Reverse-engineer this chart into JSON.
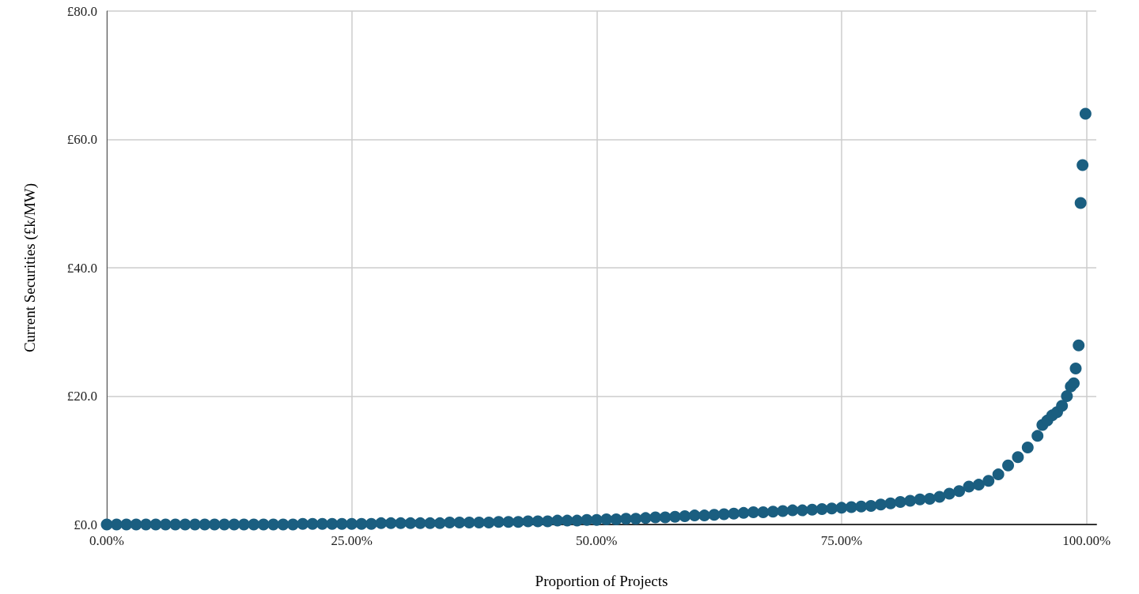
{
  "chart_data": {
    "type": "scatter",
    "xlabel": "Proportion of Projects",
    "ylabel": "Current Securities (£k/MW)",
    "x": [
      0,
      1,
      2,
      3,
      4,
      5,
      6,
      7,
      8,
      9,
      10,
      11,
      12,
      13,
      14,
      15,
      16,
      17,
      18,
      19,
      20,
      21,
      22,
      23,
      24,
      25,
      26,
      27,
      28,
      29,
      30,
      31,
      32,
      33,
      34,
      35,
      36,
      37,
      38,
      39,
      40,
      41,
      42,
      43,
      44,
      45,
      46,
      47,
      48,
      49,
      50,
      51,
      52,
      53,
      54,
      55,
      56,
      57,
      58,
      59,
      60,
      61,
      62,
      63,
      64,
      65,
      66,
      67,
      68,
      69,
      70,
      71,
      72,
      73,
      74,
      75,
      76,
      77,
      78,
      79,
      80,
      81,
      82,
      83,
      84,
      85,
      86,
      87,
      88,
      89,
      90,
      91,
      92,
      93,
      94,
      95,
      95.5,
      96,
      96.5,
      97,
      97.5,
      98,
      98.4,
      98.7,
      98.9,
      99.2,
      99.4,
      99.6,
      99.9
    ],
    "series": [
      {
        "color": "#1a5e80",
        "values": [
          0,
          0,
          0,
          0,
          0,
          0,
          0,
          0,
          0,
          0,
          0,
          0,
          0,
          0,
          0,
          0,
          0,
          0,
          0,
          0,
          0.1,
          0.1,
          0.1,
          0.1,
          0.1,
          0.1,
          0.1,
          0.1,
          0.2,
          0.2,
          0.2,
          0.2,
          0.2,
          0.2,
          0.2,
          0.3,
          0.3,
          0.3,
          0.3,
          0.3,
          0.4,
          0.4,
          0.4,
          0.5,
          0.5,
          0.5,
          0.6,
          0.6,
          0.6,
          0.7,
          0.7,
          0.8,
          0.8,
          0.9,
          0.9,
          1.0,
          1.1,
          1.1,
          1.2,
          1.3,
          1.4,
          1.4,
          1.5,
          1.6,
          1.7,
          1.8,
          1.9,
          1.9,
          2.0,
          2.1,
          2.2,
          2.2,
          2.3,
          2.4,
          2.5,
          2.6,
          2.7,
          2.8,
          2.9,
          3.1,
          3.3,
          3.5,
          3.7,
          3.9,
          4.0,
          4.3,
          4.8,
          5.2,
          5.9,
          6.2,
          6.8,
          7.8,
          9.2,
          10.5,
          12,
          13.8,
          15.5,
          16.2,
          17,
          17.5,
          18.5,
          20,
          21.5,
          22,
          24.3,
          27.9,
          50.1,
          56,
          64
        ]
      }
    ],
    "xlim": [
      0,
      101
    ],
    "xticks": [
      {
        "value": 0,
        "label": "0.00%"
      },
      {
        "value": 25,
        "label": "25.00%"
      },
      {
        "value": 50,
        "label": "50.00%"
      },
      {
        "value": 75,
        "label": "75.00%"
      },
      {
        "value": 100,
        "label": "100.00%"
      }
    ],
    "ylim": [
      0,
      80
    ],
    "yticks": [
      {
        "value": 0,
        "label": "£0.0"
      },
      {
        "value": 20,
        "label": "£20.0"
      },
      {
        "value": 40,
        "label": "£40.0"
      },
      {
        "value": 60,
        "label": "£60.0"
      },
      {
        "value": 80,
        "label": "£80.0"
      }
    ],
    "grid": true,
    "marker": "circle"
  }
}
